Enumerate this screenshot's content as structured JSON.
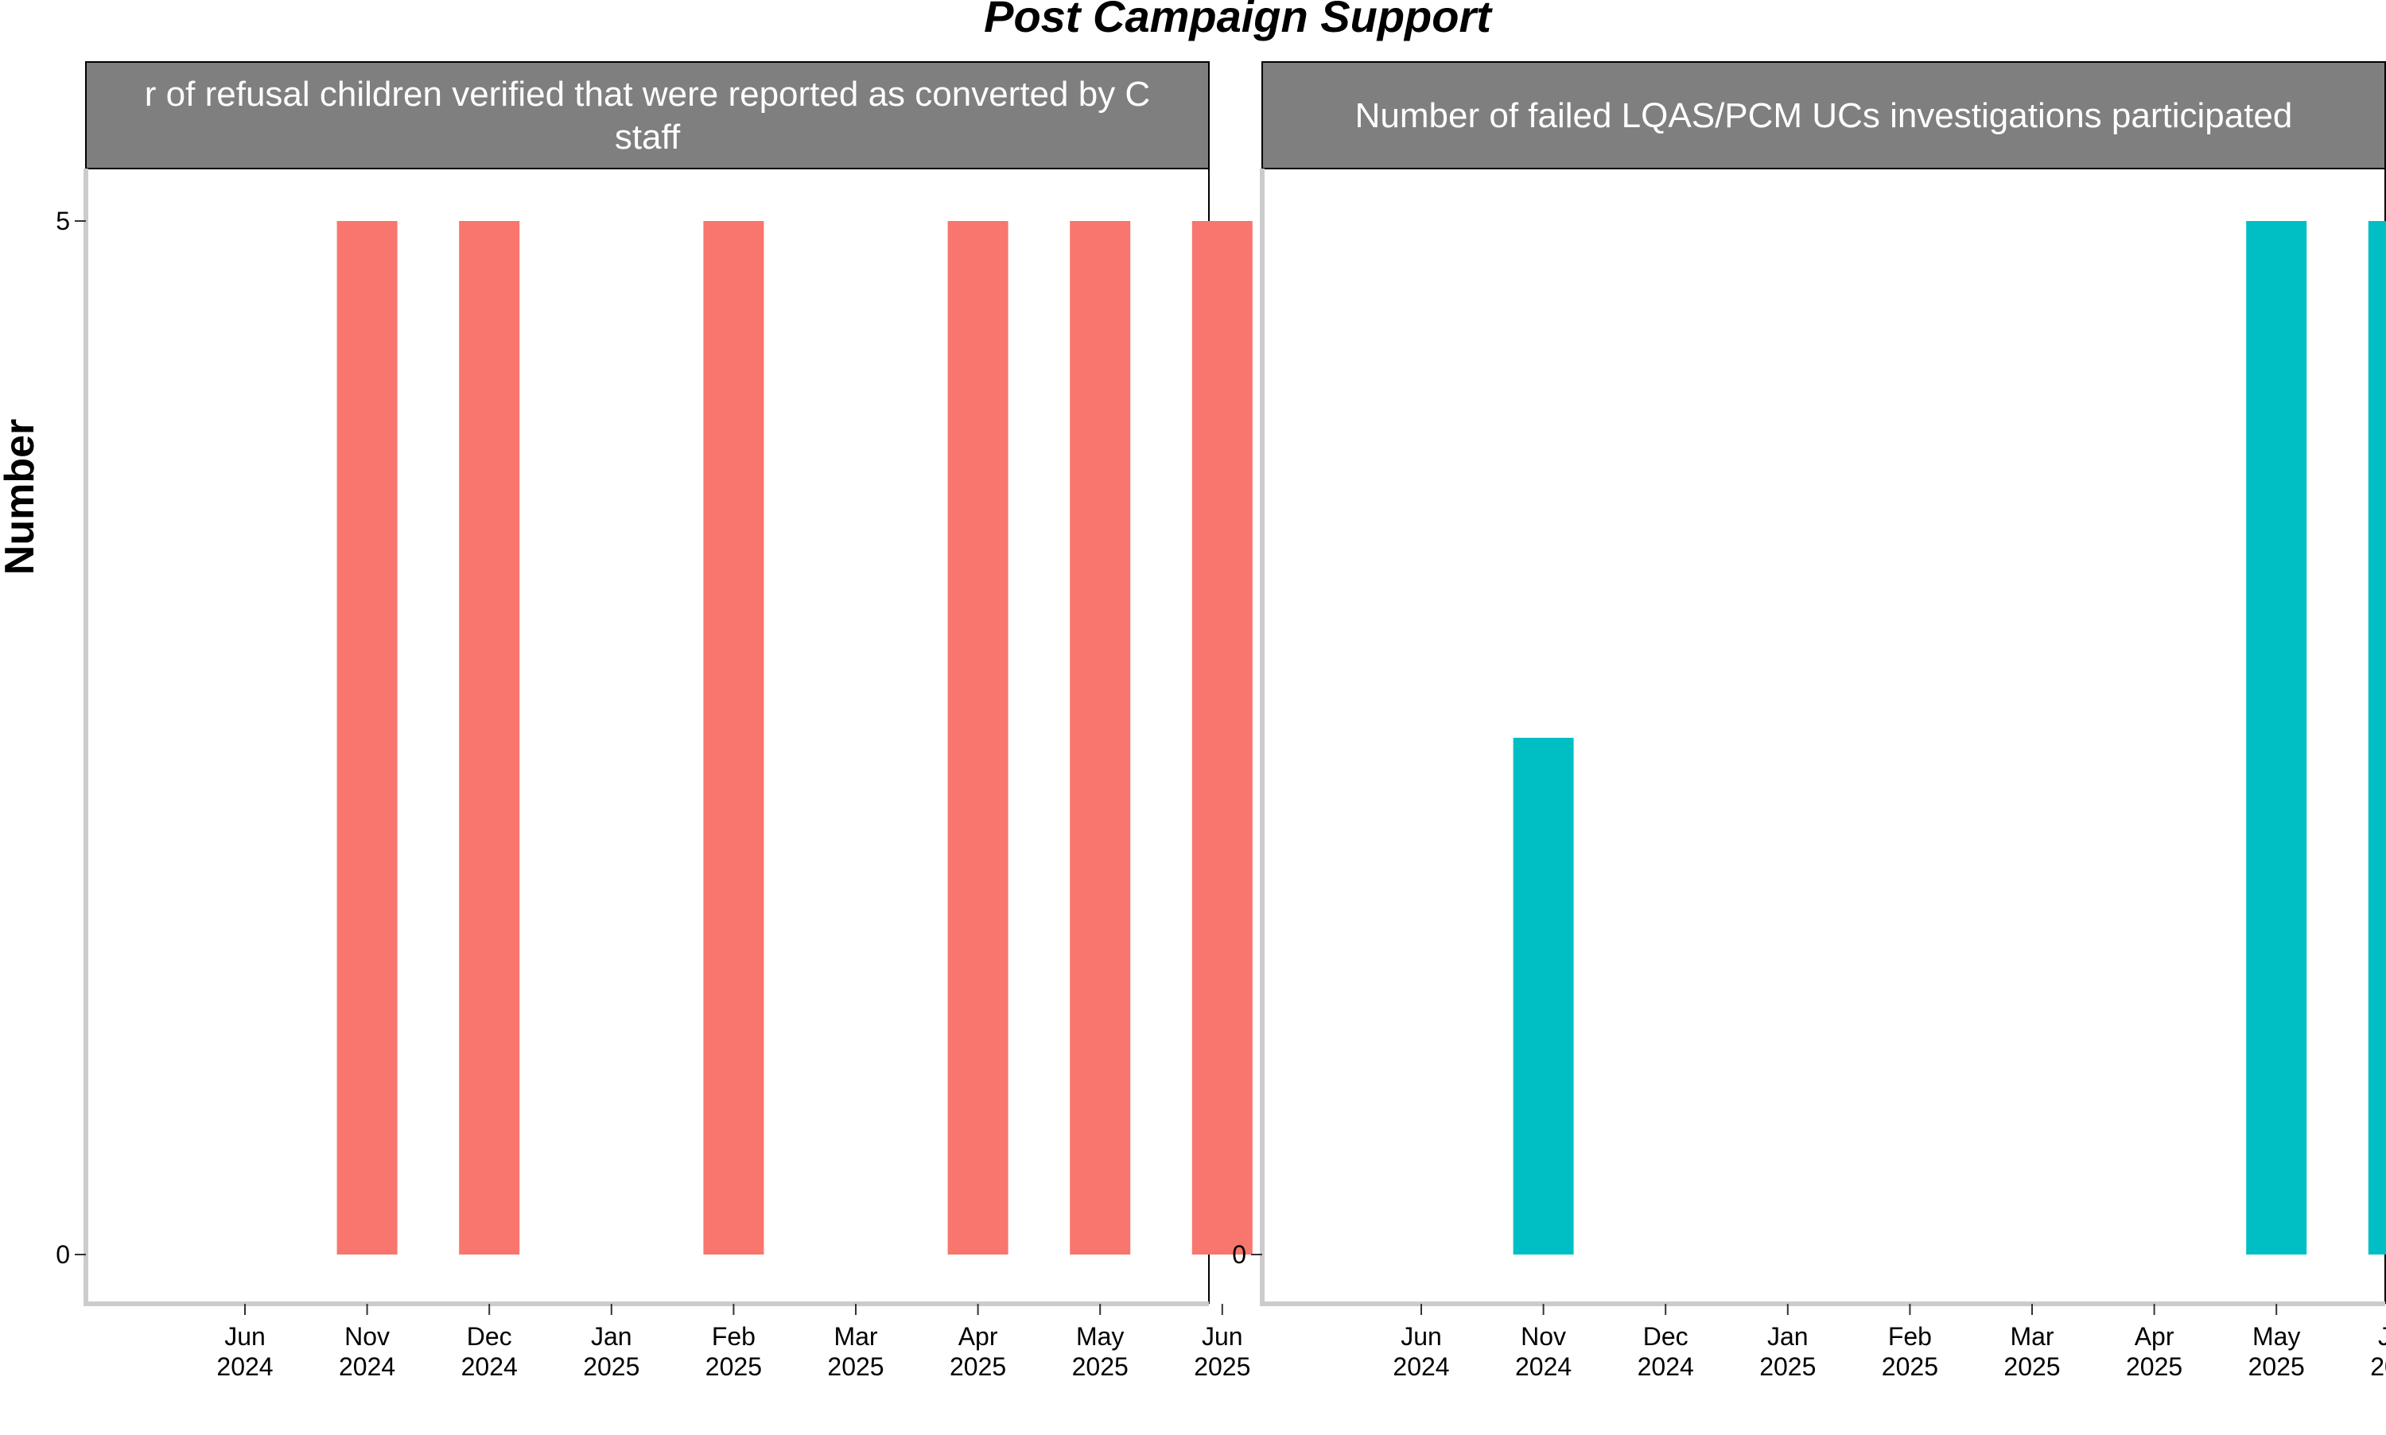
{
  "chart_data": {
    "type": "bar",
    "title": "Post Campaign Support",
    "ylabel": "Number",
    "xlabel": "",
    "ylim": [
      0,
      5
    ],
    "yticks": [
      0,
      5
    ],
    "grid": false,
    "x_ticks": [
      [
        "Jun",
        "2024"
      ],
      [
        "Nov",
        "2024"
      ],
      [
        "Dec",
        "2024"
      ],
      [
        "Jan",
        "2025"
      ],
      [
        "Feb",
        "2025"
      ],
      [
        "Mar",
        "2025"
      ],
      [
        "Apr",
        "2025"
      ],
      [
        "May",
        "2025"
      ],
      [
        "Jun",
        "2025"
      ]
    ],
    "panels": [
      {
        "strip_lines": [
          "r of refusal children verified that were reported as converted by C",
          "staff"
        ],
        "color": "#F8766D",
        "categories": [
          "Nov 2024",
          "Dec 2024",
          "Feb 2025",
          "Apr 2025",
          "May 2025",
          "Jun 2025"
        ],
        "values": [
          5,
          5,
          5,
          5,
          5,
          5
        ],
        "show_y_ticks": [
          0,
          5
        ]
      },
      {
        "strip_lines": [
          "Number of failed LQAS/PCM UCs investigations participated"
        ],
        "color": "#00BFC4",
        "categories": [
          "Nov 2024",
          "May 2025",
          "Jun 2025"
        ],
        "values": [
          2.5,
          5,
          5
        ],
        "show_y_ticks": [
          0
        ]
      }
    ]
  }
}
